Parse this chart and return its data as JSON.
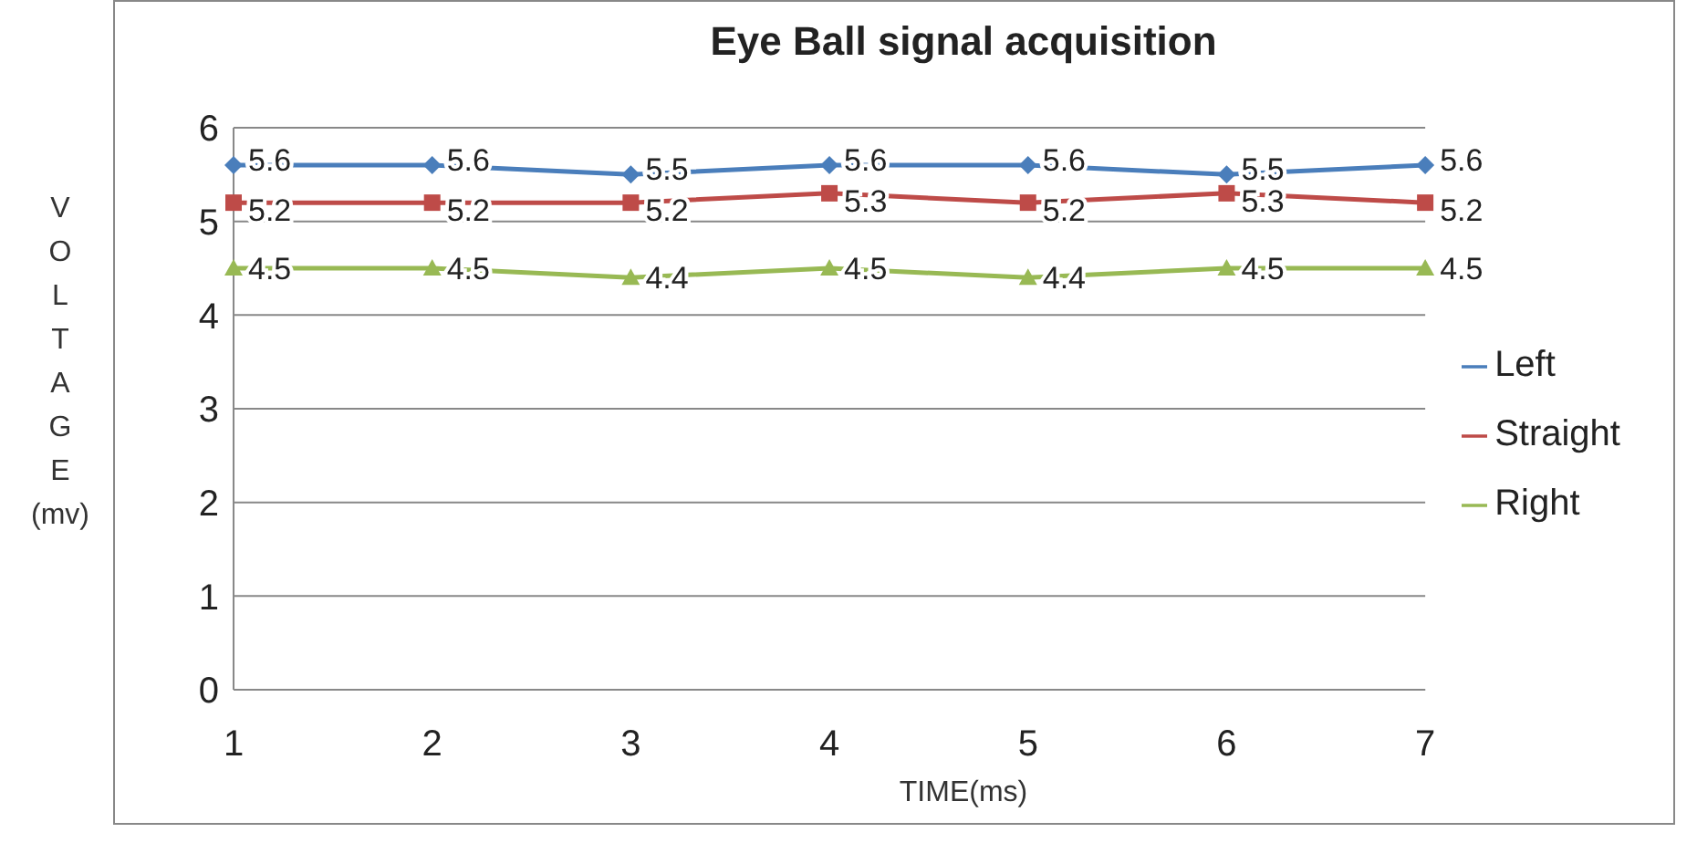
{
  "chart_data": {
    "type": "line",
    "title": "Eye Ball signal acquisition",
    "xlabel": "TIME(ms)",
    "ylabel": "VOLTAGE (mv)",
    "categories": [
      "1",
      "2",
      "3",
      "4",
      "5",
      "6",
      "7"
    ],
    "series": [
      {
        "name": "Left",
        "color": "#4a7ebb",
        "marker": "diamond",
        "values": [
          5.6,
          5.6,
          5.5,
          5.6,
          5.6,
          5.5,
          5.6
        ]
      },
      {
        "name": "Straight",
        "color": "#be4b48",
        "marker": "square",
        "values": [
          5.2,
          5.2,
          5.2,
          5.3,
          5.2,
          5.3,
          5.2
        ]
      },
      {
        "name": "Right",
        "color": "#98b954",
        "marker": "triangle",
        "values": [
          4.5,
          4.5,
          4.4,
          4.5,
          4.4,
          4.5,
          4.5
        ]
      }
    ],
    "ylim": [
      0,
      6
    ],
    "yticks": [
      0,
      1,
      2,
      3,
      4,
      5,
      6
    ],
    "grid": "y",
    "legend": "right",
    "data_labels": true
  }
}
